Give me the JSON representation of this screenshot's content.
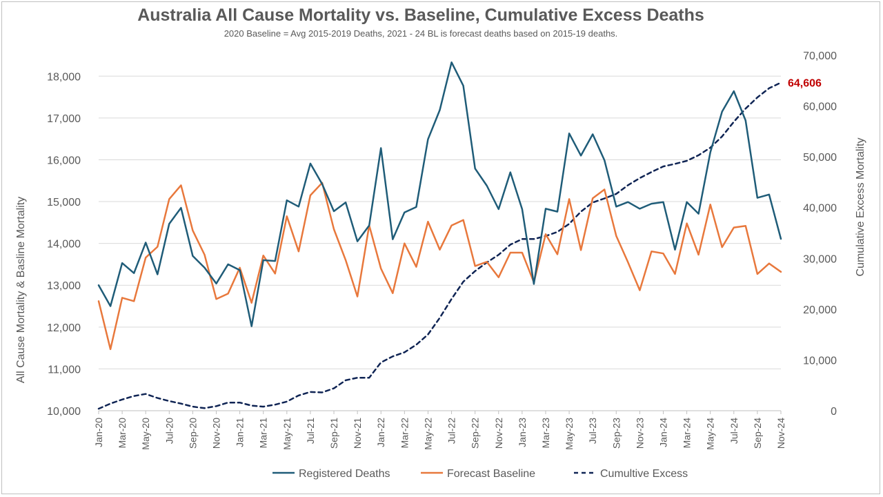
{
  "chart_data": {
    "type": "line",
    "title": "Australia All Cause Mortality vs. Baseline, Cumulative Excess Deaths",
    "subtitle": "2020 Baseline = Avg 2015-2019 Deaths, 2021 - 24 BL is forecast deaths based on 2015-19 deaths.",
    "ylabel": "All Cause Mortality & Basline Mortality",
    "y2label": "Cumulative Excess Mortality",
    "ylim": [
      10000,
      18500
    ],
    "y2lim": [
      0,
      70000
    ],
    "y_ticks": [
      "10,000",
      "11,000",
      "12,000",
      "13,000",
      "14,000",
      "15,000",
      "16,000",
      "17,000",
      "18,000"
    ],
    "y2_ticks": [
      "0",
      "10,000",
      "20,000",
      "30,000",
      "40,000",
      "50,000",
      "60,000",
      "70,000"
    ],
    "x": [
      "Jan-20",
      "Feb-20",
      "Mar-20",
      "Apr-20",
      "May-20",
      "Jun-20",
      "Jul-20",
      "Aug-20",
      "Sep-20",
      "Oct-20",
      "Nov-20",
      "Dec-20",
      "Jan-21",
      "Feb-21",
      "Mar-21",
      "Apr-21",
      "May-21",
      "Jun-21",
      "Jul-21",
      "Aug-21",
      "Sep-21",
      "Oct-21",
      "Nov-21",
      "Dec-21",
      "Jan-22",
      "Feb-22",
      "Mar-22",
      "Apr-22",
      "May-22",
      "Jun-22",
      "Jul-22",
      "Aug-22",
      "Sep-22",
      "Oct-22",
      "Nov-22",
      "Dec-22",
      "Jan-23",
      "Feb-23",
      "Mar-23",
      "Apr-23",
      "May-23",
      "Jun-23",
      "Jul-23",
      "Aug-23",
      "Sep-23",
      "Oct-23",
      "Nov-23",
      "Dec-23",
      "Jan-24",
      "Feb-24",
      "Mar-24",
      "Apr-24",
      "May-24",
      "Jun-24",
      "Jul-24",
      "Aug-24",
      "Sep-24",
      "Oct-24",
      "Nov-24"
    ],
    "x_tick_labels": [
      "Jan-20",
      "Mar-20",
      "May-20",
      "Jul-20",
      "Sep-20",
      "Nov-20",
      "Jan-21",
      "Mar-21",
      "May-21",
      "Jul-21",
      "Sep-21",
      "Nov-21",
      "Jan-22",
      "Mar-22",
      "May-22",
      "Jul-22",
      "Sep-22",
      "Nov-22",
      "Jan-23",
      "Mar-23",
      "May-23",
      "Jul-23",
      "Sep-23",
      "Nov-23",
      "Jan-24",
      "Mar-24",
      "May-24",
      "Jul-24",
      "Sep-24",
      "Nov-24"
    ],
    "series": [
      {
        "name": "Registered Deaths",
        "axis": "left",
        "color": "#1f5c78",
        "style": "solid",
        "values": [
          13000,
          12500,
          13530,
          13290,
          14020,
          13260,
          14470,
          14850,
          13700,
          13420,
          13040,
          13500,
          13360,
          12020,
          13600,
          13580,
          15030,
          14880,
          15910,
          15420,
          14770,
          14980,
          14050,
          14430,
          16280,
          14100,
          14740,
          14870,
          16490,
          17190,
          18330,
          17770,
          15790,
          15380,
          14820,
          15700,
          14820,
          13030,
          14830,
          14760,
          16630,
          16100,
          16610,
          15990,
          14880,
          14990,
          14830,
          14950,
          14990,
          13850,
          14990,
          14710,
          16180,
          17150,
          17640,
          16940,
          15090,
          15170,
          14110
        ]
      },
      {
        "name": "Forecast Baseline",
        "axis": "left",
        "color": "#e8783c",
        "style": "solid",
        "values": [
          12620,
          11470,
          12700,
          12620,
          13660,
          13920,
          15060,
          15390,
          14310,
          13730,
          12670,
          12800,
          13420,
          12580,
          13710,
          13280,
          14650,
          13810,
          15150,
          15450,
          14340,
          13600,
          12730,
          14430,
          13400,
          12810,
          14000,
          13440,
          14520,
          13850,
          14430,
          14560,
          13460,
          13560,
          13190,
          13780,
          13780,
          13070,
          14220,
          13740,
          15060,
          13840,
          15080,
          15290,
          14180,
          13550,
          12880,
          13810,
          13760,
          13270,
          14480,
          13730,
          14930,
          13910,
          14380,
          14420,
          13270,
          13520,
          13320
        ]
      },
      {
        "name": "Cumultive Excess",
        "axis": "right",
        "color": "#0f2454",
        "style": "dashed",
        "values": [
          400,
          1400,
          2200,
          2900,
          3300,
          2500,
          1900,
          1400,
          800,
          500,
          900,
          1600,
          1600,
          1000,
          800,
          1200,
          1800,
          3000,
          3700,
          3600,
          4400,
          6000,
          6500,
          6500,
          9500,
          10700,
          11500,
          13000,
          15000,
          18300,
          22000,
          25400,
          27500,
          29200,
          30700,
          32700,
          33800,
          33800,
          34400,
          35200,
          36800,
          39200,
          41000,
          41800,
          42700,
          44400,
          45800,
          47000,
          48100,
          48600,
          49200,
          50300,
          51800,
          54000,
          56900,
          59500,
          61700,
          63500,
          64606
        ]
      }
    ],
    "annotations": [
      {
        "text": "64,606",
        "series": "Cumultive Excess",
        "point": "Nov-24"
      }
    ],
    "legend": "bottom",
    "grid": true
  }
}
